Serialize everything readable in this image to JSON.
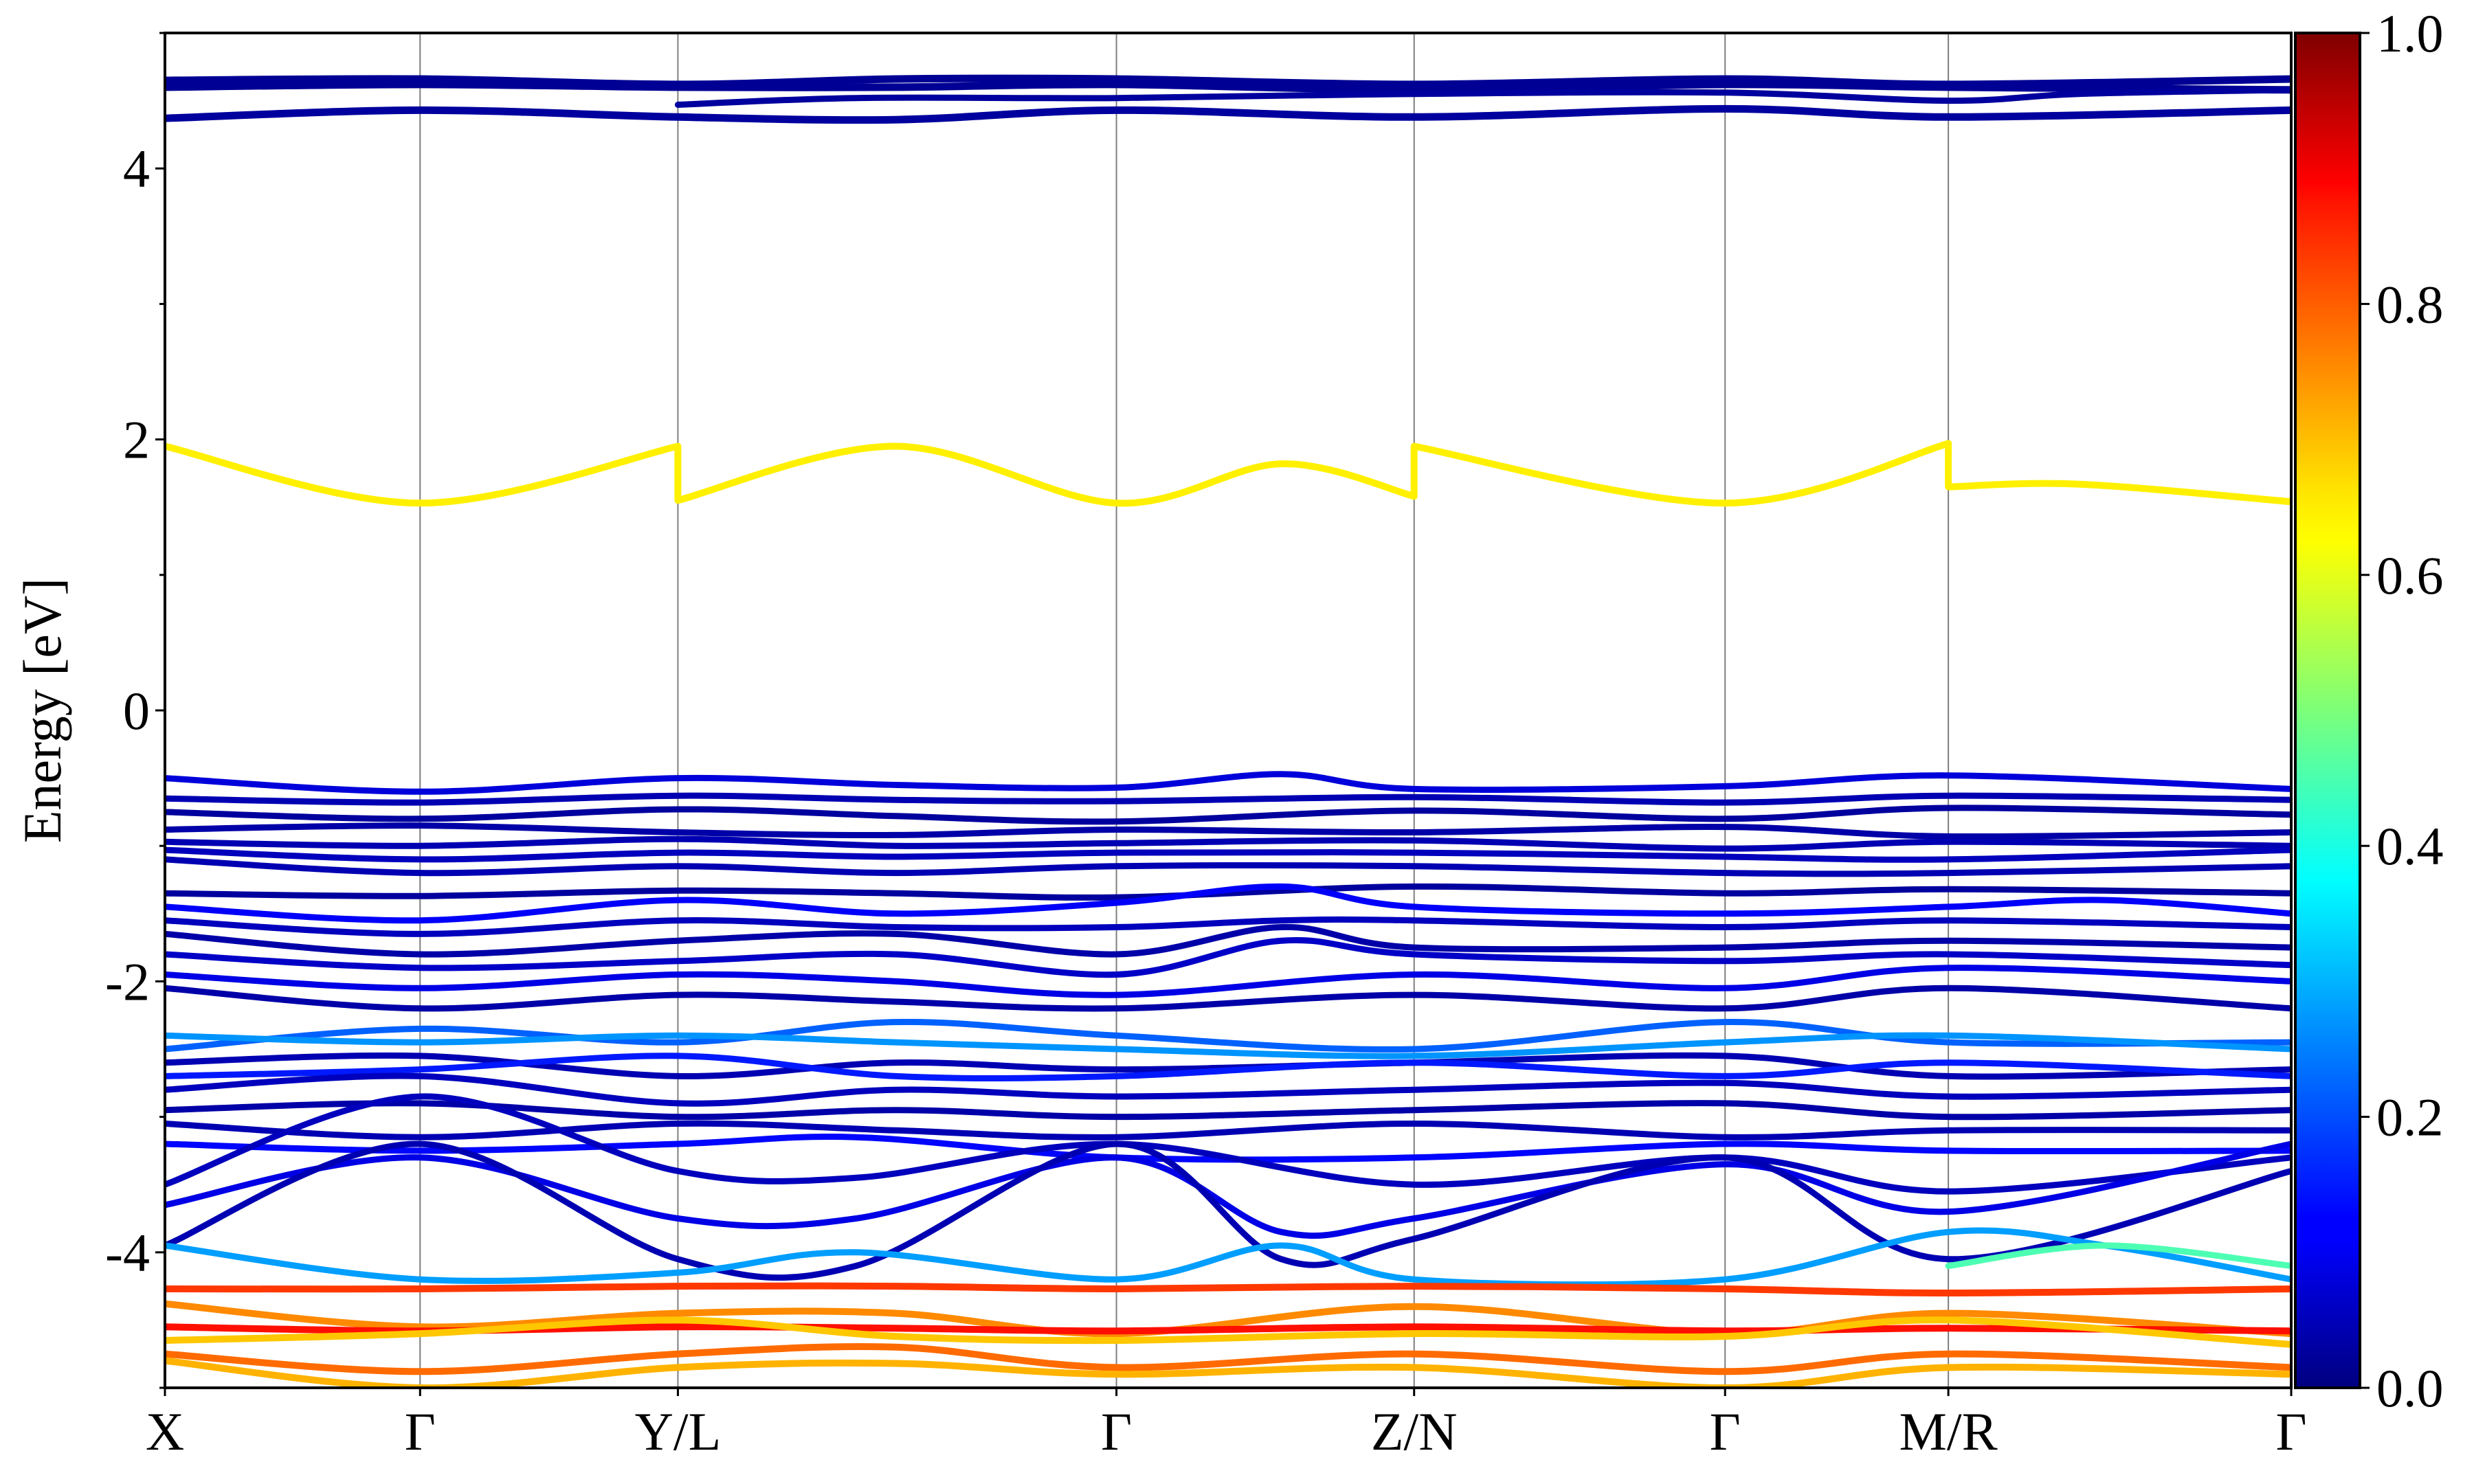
{
  "chart_data": {
    "type": "line",
    "title": "",
    "xlabel": "",
    "ylabel": "Energy [eV]",
    "ylim": [
      -5,
      5
    ],
    "yticks": [
      {
        "value": 4,
        "label": "4"
      },
      {
        "value": 2,
        "label": "2"
      },
      {
        "value": 0,
        "label": "0"
      },
      {
        "value": -2,
        "label": "-2"
      },
      {
        "value": -4,
        "label": "-4"
      }
    ],
    "xlim": [
      0,
      8.0
    ],
    "xticks": [
      {
        "x": 0.0,
        "label": "X"
      },
      {
        "x": 0.96,
        "label": "Γ"
      },
      {
        "x": 1.93,
        "label": "Y/L"
      },
      {
        "x": 3.58,
        "label": "Γ"
      },
      {
        "x": 4.7,
        "label": "Z/N"
      },
      {
        "x": 5.87,
        "label": "Γ"
      },
      {
        "x": 6.71,
        "label": "M/R"
      },
      {
        "x": 8.0,
        "label": "Γ"
      }
    ],
    "grid": "vertical lines at high-symmetry points",
    "colormap": "jet",
    "colorbar": {
      "range": [
        0,
        1
      ],
      "ticks": [
        {
          "value": 1.0,
          "label": "1.0"
        },
        {
          "value": 0.8,
          "label": "0.8"
        },
        {
          "value": 0.6,
          "label": "0.6"
        },
        {
          "value": 0.4,
          "label": "0.4"
        },
        {
          "value": 0.2,
          "label": "0.2"
        },
        {
          "value": 0.0,
          "label": "0.0"
        }
      ]
    },
    "series": [
      {
        "c": 0.02,
        "w": 11,
        "x": [
          0,
          0.96,
          1.93,
          2.75,
          3.58,
          4.7,
          5.87,
          6.71,
          8.0
        ],
        "y": [
          4.65,
          4.66,
          4.62,
          4.66,
          4.66,
          4.62,
          4.66,
          4.62,
          4.66
        ]
      },
      {
        "c": 0.02,
        "w": 11,
        "x": [
          0,
          0.96,
          1.93,
          2.75,
          3.58,
          4.7,
          5.87,
          6.71,
          8.0
        ],
        "y": [
          4.6,
          4.62,
          4.6,
          4.6,
          4.62,
          4.58,
          4.62,
          4.6,
          4.58
        ]
      },
      {
        "c": 0.03,
        "w": 11,
        "x": [
          0,
          0.96,
          1.93,
          2.75,
          3.58,
          4.7,
          5.87,
          6.71,
          8.0
        ],
        "y": [
          4.37,
          4.43,
          4.38,
          4.36,
          4.43,
          4.38,
          4.44,
          4.38,
          4.43
        ]
      },
      {
        "c": 0.03,
        "w": 9,
        "x": [
          1.93,
          2.6,
          3.58,
          4.7,
          5.87,
          6.71,
          7.2,
          8.0
        ],
        "y": [
          4.47,
          4.52,
          4.52,
          4.55,
          4.56,
          4.5,
          4.55,
          4.58
        ]
      },
      {
        "c": 0.64,
        "w": 10,
        "x": [
          0,
          0.96,
          1.93,
          1.93,
          2.75,
          3.58,
          4.2,
          4.7,
          4.7,
          5.87,
          6.71,
          6.71,
          7.2,
          8.0
        ],
        "y": [
          1.95,
          1.53,
          1.95,
          1.55,
          1.95,
          1.53,
          1.82,
          1.58,
          1.95,
          1.53,
          1.97,
          1.65,
          1.67,
          1.54
        ]
      },
      {
        "c": 0.09,
        "w": 9,
        "x": [
          0,
          0.96,
          1.93,
          2.75,
          3.58,
          4.2,
          4.7,
          5.87,
          6.71,
          8.0
        ],
        "y": [
          -0.5,
          -0.6,
          -0.5,
          -0.55,
          -0.57,
          -0.47,
          -0.58,
          -0.56,
          -0.48,
          -0.58
        ]
      },
      {
        "c": 0.05,
        "w": 9,
        "x": [
          0,
          0.96,
          1.93,
          2.75,
          3.58,
          4.7,
          5.87,
          6.71,
          8.0
        ],
        "y": [
          -0.65,
          -0.68,
          -0.63,
          -0.66,
          -0.67,
          -0.64,
          -0.68,
          -0.63,
          -0.66
        ]
      },
      {
        "c": 0.03,
        "w": 9,
        "x": [
          0,
          0.96,
          1.93,
          2.75,
          3.58,
          4.7,
          5.87,
          6.71,
          8.0
        ],
        "y": [
          -0.75,
          -0.8,
          -0.73,
          -0.78,
          -0.82,
          -0.74,
          -0.8,
          -0.72,
          -0.77
        ]
      },
      {
        "c": 0.04,
        "w": 9,
        "x": [
          0,
          0.96,
          1.93,
          2.75,
          3.58,
          4.7,
          5.87,
          6.71,
          8.0
        ],
        "y": [
          -0.88,
          -0.85,
          -0.9,
          -0.92,
          -0.88,
          -0.9,
          -0.86,
          -0.93,
          -0.9
        ]
      },
      {
        "c": 0.05,
        "w": 9,
        "x": [
          0,
          0.96,
          1.93,
          2.75,
          3.58,
          4.7,
          5.87,
          6.71,
          8.0
        ],
        "y": [
          -0.97,
          -1.0,
          -0.95,
          -1.0,
          -0.98,
          -0.96,
          -1.02,
          -0.97,
          -1.0
        ]
      },
      {
        "c": 0.06,
        "w": 9,
        "x": [
          0,
          0.96,
          1.93,
          2.75,
          3.58,
          4.7,
          5.87,
          6.71,
          8.0
        ],
        "y": [
          -1.03,
          -1.1,
          -1.05,
          -1.08,
          -1.05,
          -1.05,
          -1.08,
          -1.1,
          -1.03
        ]
      },
      {
        "c": 0.05,
        "w": 9,
        "x": [
          0,
          0.96,
          1.93,
          2.75,
          3.58,
          4.7,
          5.87,
          6.71,
          8.0
        ],
        "y": [
          -1.1,
          -1.2,
          -1.15,
          -1.2,
          -1.15,
          -1.15,
          -1.2,
          -1.2,
          -1.15
        ]
      },
      {
        "c": 0.03,
        "w": 9,
        "x": [
          0,
          0.96,
          1.93,
          2.75,
          3.58,
          4.7,
          5.87,
          6.71,
          8.0
        ],
        "y": [
          -1.35,
          -1.37,
          -1.33,
          -1.35,
          -1.38,
          -1.3,
          -1.35,
          -1.32,
          -1.35
        ]
      },
      {
        "c": 0.12,
        "w": 9,
        "x": [
          0,
          0.96,
          1.93,
          2.75,
          3.58,
          4.2,
          4.7,
          5.87,
          6.71,
          7.3,
          8.0
        ],
        "y": [
          -1.45,
          -1.55,
          -1.4,
          -1.5,
          -1.42,
          -1.3,
          -1.45,
          -1.5,
          -1.45,
          -1.4,
          -1.5
        ]
      },
      {
        "c": 0.06,
        "w": 9,
        "x": [
          0,
          0.96,
          1.93,
          2.75,
          3.58,
          4.2,
          4.7,
          5.87,
          6.71,
          8.0
        ],
        "y": [
          -1.55,
          -1.65,
          -1.55,
          -1.6,
          -1.6,
          -1.55,
          -1.55,
          -1.6,
          -1.55,
          -1.6
        ]
      },
      {
        "c": 0.04,
        "w": 9,
        "x": [
          0,
          0.96,
          1.93,
          2.75,
          3.58,
          4.2,
          4.7,
          5.87,
          6.71,
          8.0
        ],
        "y": [
          -1.65,
          -1.8,
          -1.7,
          -1.65,
          -1.8,
          -1.6,
          -1.75,
          -1.75,
          -1.7,
          -1.75
        ]
      },
      {
        "c": 0.07,
        "w": 9,
        "x": [
          0,
          0.96,
          1.93,
          2.75,
          3.58,
          4.2,
          4.7,
          5.87,
          6.71,
          8.0
        ],
        "y": [
          -1.8,
          -1.9,
          -1.85,
          -1.8,
          -1.95,
          -1.7,
          -1.8,
          -1.85,
          -1.8,
          -1.88
        ]
      },
      {
        "c": 0.1,
        "w": 9,
        "x": [
          0,
          0.96,
          1.93,
          2.75,
          3.58,
          4.7,
          5.87,
          6.71,
          8.0
        ],
        "y": [
          -1.95,
          -2.05,
          -1.95,
          -2.0,
          -2.1,
          -1.95,
          -2.05,
          -1.9,
          -2.0
        ]
      },
      {
        "c": 0.04,
        "w": 9,
        "x": [
          0,
          0.96,
          1.93,
          2.75,
          3.58,
          4.7,
          5.87,
          6.71,
          8.0
        ],
        "y": [
          -2.05,
          -2.2,
          -2.1,
          -2.15,
          -2.2,
          -2.1,
          -2.2,
          -2.05,
          -2.2
        ]
      },
      {
        "c": 0.22,
        "w": 9,
        "x": [
          0,
          0.96,
          1.93,
          2.75,
          3.58,
          4.7,
          5.87,
          6.71,
          8.0
        ],
        "y": [
          -2.5,
          -2.35,
          -2.45,
          -2.3,
          -2.4,
          -2.5,
          -2.3,
          -2.45,
          -2.45
        ]
      },
      {
        "c": 0.27,
        "w": 9,
        "x": [
          0,
          0.96,
          1.93,
          2.75,
          3.58,
          4.7,
          5.87,
          6.71,
          8.0
        ],
        "y": [
          -2.4,
          -2.45,
          -2.4,
          -2.45,
          -2.5,
          -2.55,
          -2.45,
          -2.4,
          -2.5
        ]
      },
      {
        "c": 0.05,
        "w": 9,
        "x": [
          0,
          0.96,
          1.93,
          2.75,
          3.58,
          4.7,
          5.87,
          6.71,
          8.0
        ],
        "y": [
          -2.6,
          -2.55,
          -2.7,
          -2.6,
          -2.65,
          -2.6,
          -2.55,
          -2.7,
          -2.65
        ]
      },
      {
        "c": 0.15,
        "w": 9,
        "x": [
          0,
          0.96,
          1.93,
          2.75,
          3.58,
          4.7,
          5.87,
          6.71,
          8.0
        ],
        "y": [
          -2.7,
          -2.65,
          -2.55,
          -2.7,
          -2.7,
          -2.6,
          -2.7,
          -2.6,
          -2.7
        ]
      },
      {
        "c": 0.06,
        "w": 9,
        "x": [
          0,
          0.96,
          1.93,
          2.75,
          3.58,
          4.7,
          5.87,
          6.71,
          8.0
        ],
        "y": [
          -2.8,
          -2.7,
          -2.9,
          -2.8,
          -2.85,
          -2.8,
          -2.75,
          -2.85,
          -2.8
        ]
      },
      {
        "c": 0.04,
        "w": 9,
        "x": [
          0,
          0.96,
          1.93,
          2.75,
          3.58,
          4.7,
          5.87,
          6.71,
          8.0
        ],
        "y": [
          -2.95,
          -2.9,
          -3.0,
          -2.95,
          -3.0,
          -2.95,
          -2.9,
          -3.0,
          -2.95
        ]
      },
      {
        "c": 0.05,
        "w": 9,
        "x": [
          0,
          0.96,
          1.93,
          2.75,
          3.58,
          4.7,
          5.87,
          6.71,
          8.0
        ],
        "y": [
          -3.05,
          -3.15,
          -3.05,
          -3.1,
          -3.15,
          -3.05,
          -3.15,
          -3.1,
          -3.1
        ]
      },
      {
        "c": 0.13,
        "w": 9,
        "x": [
          0,
          0.96,
          1.93,
          2.6,
          3.58,
          4.7,
          5.87,
          6.71,
          8.0
        ],
        "y": [
          -3.2,
          -3.25,
          -3.2,
          -3.15,
          -3.3,
          -3.3,
          -3.2,
          -3.25,
          -3.25
        ]
      },
      {
        "c": 0.06,
        "w": 9,
        "x": [
          0,
          0.96,
          1.93,
          2.6,
          3.58,
          4.7,
          5.87,
          6.71,
          8.0
        ],
        "y": [
          -3.5,
          -2.85,
          -3.4,
          -3.45,
          -3.2,
          -3.5,
          -3.3,
          -3.55,
          -3.3
        ]
      },
      {
        "c": 0.1,
        "w": 9,
        "x": [
          0,
          0.96,
          1.93,
          2.6,
          3.58,
          4.2,
          4.7,
          5.87,
          6.71,
          8.0
        ],
        "y": [
          -3.65,
          -3.3,
          -3.75,
          -3.75,
          -3.3,
          -3.85,
          -3.75,
          -3.35,
          -3.7,
          -3.2
        ]
      },
      {
        "c": 0.05,
        "w": 9,
        "x": [
          0,
          0.96,
          1.93,
          2.6,
          3.58,
          4.2,
          4.7,
          5.87,
          6.71,
          8.0
        ],
        "y": [
          -3.95,
          -3.2,
          -4.05,
          -4.1,
          -3.2,
          -4.05,
          -3.9,
          -3.3,
          -4.05,
          -3.4
        ]
      },
      {
        "c": 0.28,
        "w": 9,
        "x": [
          0,
          0.96,
          1.93,
          2.6,
          3.58,
          4.2,
          4.7,
          5.87,
          6.71,
          7.3,
          8.0
        ],
        "y": [
          -3.95,
          -4.2,
          -4.15,
          -4.0,
          -4.2,
          -3.95,
          -4.2,
          -4.2,
          -3.85,
          -3.95,
          -4.2
        ]
      },
      {
        "c": 0.45,
        "w": 9,
        "x": [
          6.71,
          7.3,
          8.0
        ],
        "y": [
          -4.1,
          -3.95,
          -4.1
        ]
      },
      {
        "c": 0.82,
        "w": 10,
        "x": [
          0,
          0.96,
          1.93,
          2.75,
          3.58,
          4.7,
          5.87,
          6.71,
          8.0
        ],
        "y": [
          -4.27,
          -4.27,
          -4.25,
          -4.25,
          -4.27,
          -4.25,
          -4.27,
          -4.3,
          -4.27
        ]
      },
      {
        "c": 0.74,
        "w": 10,
        "x": [
          0,
          0.96,
          1.93,
          2.75,
          3.58,
          4.7,
          5.87,
          6.71,
          8.0
        ],
        "y": [
          -4.38,
          -4.55,
          -4.45,
          -4.45,
          -4.6,
          -4.4,
          -4.6,
          -4.45,
          -4.6
        ]
      },
      {
        "c": 0.86,
        "w": 10,
        "x": [
          0,
          0.96,
          1.93,
          2.75,
          3.58,
          4.7,
          5.87,
          6.71,
          8.0
        ],
        "y": [
          -4.55,
          -4.58,
          -4.55,
          -4.56,
          -4.58,
          -4.55,
          -4.58,
          -4.56,
          -4.58
        ]
      },
      {
        "c": 0.68,
        "w": 10,
        "x": [
          0,
          0.96,
          1.93,
          2.75,
          3.58,
          4.7,
          5.87,
          6.71,
          8.0
        ],
        "y": [
          -4.65,
          -4.6,
          -4.5,
          -4.62,
          -4.65,
          -4.6,
          -4.62,
          -4.5,
          -4.68
        ]
      },
      {
        "c": 0.77,
        "w": 10,
        "x": [
          0,
          0.96,
          1.93,
          2.75,
          3.58,
          4.7,
          5.87,
          6.71,
          8.0
        ],
        "y": [
          -4.75,
          -4.88,
          -4.75,
          -4.7,
          -4.85,
          -4.75,
          -4.88,
          -4.75,
          -4.85
        ]
      },
      {
        "c": 0.7,
        "w": 10,
        "x": [
          0,
          0.96,
          1.93,
          2.75,
          3.58,
          4.7,
          5.87,
          6.71,
          8.0
        ],
        "y": [
          -4.8,
          -5.0,
          -4.85,
          -4.82,
          -4.9,
          -4.85,
          -5.0,
          -4.85,
          -4.9
        ]
      }
    ]
  }
}
